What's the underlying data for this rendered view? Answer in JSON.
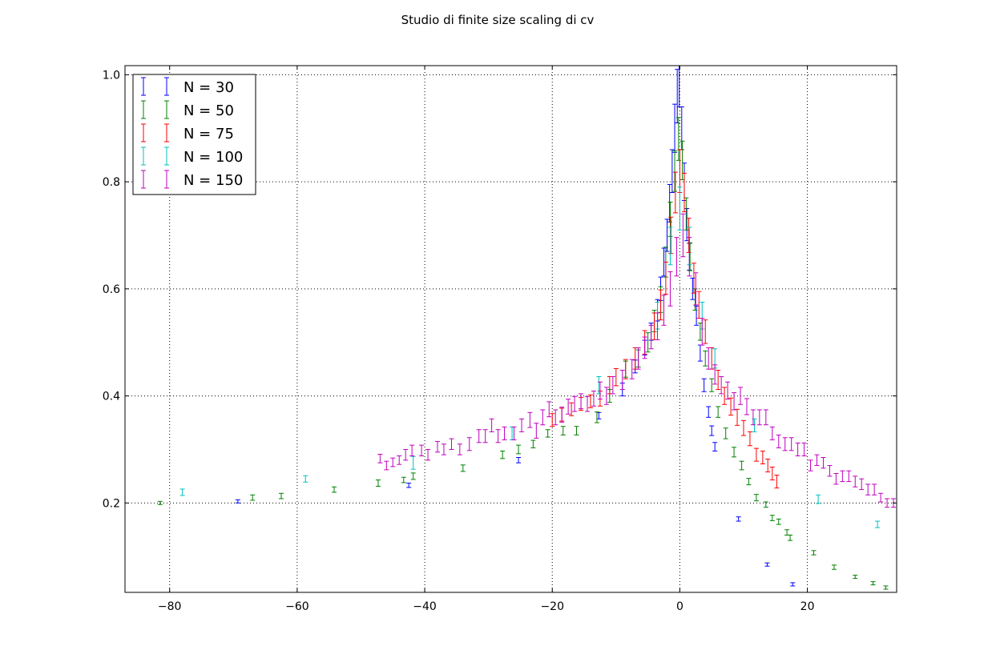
{
  "chart_data": {
    "type": "scatter",
    "title": "Studio di finite size scaling di cv",
    "xlabel": "",
    "ylabel": "",
    "xlim": [
      -87,
      34
    ],
    "ylim": [
      0.033,
      1.017
    ],
    "x_ticks": [
      -80,
      -60,
      -40,
      -20,
      0,
      20
    ],
    "x_tick_labels": [
      "−80",
      "−60",
      "−40",
      "−20",
      "0",
      "20"
    ],
    "y_ticks": [
      0.2,
      0.4,
      0.6,
      0.8,
      1.0
    ],
    "y_tick_labels": [
      "0.2",
      "0.4",
      "0.6",
      "0.8",
      "1.0"
    ],
    "grid": true,
    "legend_position": "top-left",
    "error_bars": true,
    "series": [
      {
        "name": "N = 30",
        "color": "#0000ff",
        "points": [
          [
            -69.3,
            0.203,
            0.003
          ],
          [
            -42.5,
            0.233,
            0.004
          ],
          [
            -25.3,
            0.28,
            0.005
          ],
          [
            -12.7,
            0.363,
            0.006
          ],
          [
            -9.0,
            0.412,
            0.012
          ],
          [
            -7.0,
            0.455,
            0.012
          ],
          [
            -5.5,
            0.49,
            0.014
          ],
          [
            -4.5,
            0.52,
            0.016
          ],
          [
            -3.5,
            0.56,
            0.02
          ],
          [
            -3.0,
            0.6,
            0.022
          ],
          [
            -2.5,
            0.65,
            0.026
          ],
          [
            -2.0,
            0.7,
            0.03
          ],
          [
            -1.6,
            0.76,
            0.035
          ],
          [
            -1.2,
            0.82,
            0.04
          ],
          [
            -0.8,
            0.9,
            0.045
          ],
          [
            -0.4,
            0.96,
            0.05
          ],
          [
            -0.1,
            0.99,
            0.05
          ],
          [
            0.3,
            0.9,
            0.04
          ],
          [
            0.7,
            0.8,
            0.035
          ],
          [
            1.1,
            0.72,
            0.03
          ],
          [
            1.5,
            0.66,
            0.025
          ],
          [
            2.0,
            0.6,
            0.02
          ],
          [
            2.6,
            0.55,
            0.018
          ],
          [
            3.2,
            0.48,
            0.015
          ],
          [
            3.8,
            0.42,
            0.012
          ],
          [
            4.5,
            0.37,
            0.01
          ],
          [
            5.0,
            0.335,
            0.009
          ],
          [
            5.5,
            0.305,
            0.008
          ],
          [
            9.2,
            0.17,
            0.004
          ],
          [
            13.7,
            0.085,
            0.003
          ],
          [
            17.7,
            0.048,
            0.003
          ]
        ]
      },
      {
        "name": "N = 50",
        "color": "#008000",
        "points": [
          [
            -81.5,
            0.2,
            0.003
          ],
          [
            -67.0,
            0.21,
            0.005
          ],
          [
            -62.5,
            0.213,
            0.005
          ],
          [
            -54.2,
            0.225,
            0.005
          ],
          [
            -47.3,
            0.237,
            0.006
          ],
          [
            -43.3,
            0.243,
            0.005
          ],
          [
            -41.8,
            0.25,
            0.006
          ],
          [
            -34.0,
            0.265,
            0.006
          ],
          [
            -27.8,
            0.29,
            0.007
          ],
          [
            -25.3,
            0.3,
            0.008
          ],
          [
            -23.0,
            0.31,
            0.007
          ],
          [
            -20.7,
            0.33,
            0.007
          ],
          [
            -18.3,
            0.335,
            0.008
          ],
          [
            -16.2,
            0.335,
            0.008
          ],
          [
            -13.0,
            0.36,
            0.01
          ],
          [
            -11.0,
            0.4,
            0.012
          ],
          [
            -8.5,
            0.45,
            0.015
          ],
          [
            -6.5,
            0.47,
            0.016
          ],
          [
            -5.0,
            0.5,
            0.018
          ],
          [
            -4.0,
            0.54,
            0.02
          ],
          [
            -3.0,
            0.58,
            0.024
          ],
          [
            -2.2,
            0.65,
            0.028
          ],
          [
            -1.5,
            0.73,
            0.032
          ],
          [
            -0.8,
            0.82,
            0.038
          ],
          [
            -0.2,
            0.88,
            0.04
          ],
          [
            0.4,
            0.84,
            0.036
          ],
          [
            1.0,
            0.74,
            0.03
          ],
          [
            1.6,
            0.66,
            0.026
          ],
          [
            2.4,
            0.58,
            0.02
          ],
          [
            3.2,
            0.52,
            0.016
          ],
          [
            4.0,
            0.47,
            0.014
          ],
          [
            5.0,
            0.42,
            0.012
          ],
          [
            6.0,
            0.37,
            0.01
          ],
          [
            7.2,
            0.33,
            0.01
          ],
          [
            8.5,
            0.295,
            0.009
          ],
          [
            9.7,
            0.27,
            0.008
          ],
          [
            10.8,
            0.24,
            0.006
          ],
          [
            12.0,
            0.21,
            0.006
          ],
          [
            13.5,
            0.197,
            0.005
          ],
          [
            14.5,
            0.172,
            0.005
          ],
          [
            15.5,
            0.165,
            0.005
          ],
          [
            16.8,
            0.145,
            0.005
          ],
          [
            17.3,
            0.135,
            0.005
          ],
          [
            21.0,
            0.107,
            0.004
          ],
          [
            24.2,
            0.08,
            0.004
          ],
          [
            27.5,
            0.062,
            0.003
          ],
          [
            30.3,
            0.05,
            0.003
          ],
          [
            32.3,
            0.042,
            0.003
          ]
        ]
      },
      {
        "name": "N = 75",
        "color": "#ff0000",
        "points": [
          [
            -20.0,
            0.355,
            0.012
          ],
          [
            -18.5,
            0.365,
            0.012
          ],
          [
            -17.0,
            0.375,
            0.012
          ],
          [
            -15.5,
            0.385,
            0.012
          ],
          [
            -14.0,
            0.39,
            0.012
          ],
          [
            -12.5,
            0.395,
            0.014
          ],
          [
            -11.0,
            0.42,
            0.016
          ],
          [
            -10.0,
            0.435,
            0.016
          ],
          [
            -8.5,
            0.45,
            0.018
          ],
          [
            -7.0,
            0.47,
            0.02
          ],
          [
            -5.5,
            0.5,
            0.022
          ],
          [
            -4.0,
            0.53,
            0.025
          ],
          [
            -3.0,
            0.57,
            0.028
          ],
          [
            -2.2,
            0.62,
            0.03
          ],
          [
            -1.4,
            0.7,
            0.034
          ],
          [
            -0.7,
            0.78,
            0.038
          ],
          [
            0.0,
            0.82,
            0.04
          ],
          [
            0.7,
            0.78,
            0.036
          ],
          [
            1.4,
            0.7,
            0.032
          ],
          [
            2.2,
            0.62,
            0.028
          ],
          [
            3.0,
            0.57,
            0.025
          ],
          [
            4.0,
            0.52,
            0.022
          ],
          [
            5.0,
            0.47,
            0.02
          ],
          [
            6.0,
            0.43,
            0.018
          ],
          [
            7.0,
            0.4,
            0.016
          ],
          [
            8.0,
            0.38,
            0.016
          ],
          [
            9.0,
            0.36,
            0.015
          ],
          [
            10.0,
            0.34,
            0.014
          ],
          [
            11.0,
            0.32,
            0.013
          ],
          [
            12.0,
            0.29,
            0.012
          ],
          [
            13.0,
            0.285,
            0.012
          ],
          [
            13.8,
            0.27,
            0.012
          ],
          [
            14.5,
            0.255,
            0.012
          ],
          [
            15.2,
            0.24,
            0.012
          ]
        ]
      },
      {
        "name": "N = 100",
        "color": "#00bfbf",
        "points": [
          [
            -78.0,
            0.22,
            0.006
          ],
          [
            -58.7,
            0.245,
            0.006
          ],
          [
            -41.8,
            0.275,
            0.012
          ],
          [
            -26.3,
            0.33,
            0.012
          ],
          [
            -12.7,
            0.42,
            0.016
          ],
          [
            -3.5,
            0.55,
            0.025
          ],
          [
            -1.5,
            0.68,
            0.035
          ],
          [
            0.0,
            0.75,
            0.04
          ],
          [
            1.5,
            0.68,
            0.035
          ],
          [
            3.5,
            0.55,
            0.025
          ],
          [
            5.5,
            0.47,
            0.018
          ],
          [
            11.7,
            0.345,
            0.012
          ],
          [
            21.7,
            0.207,
            0.008
          ],
          [
            31.0,
            0.16,
            0.006
          ]
        ]
      },
      {
        "name": "N = 150",
        "color": "#bf00bf",
        "points": [
          [
            -47.0,
            0.283,
            0.008
          ],
          [
            -46.0,
            0.27,
            0.008
          ],
          [
            -45.0,
            0.276,
            0.008
          ],
          [
            -44.0,
            0.28,
            0.008
          ],
          [
            -43.0,
            0.29,
            0.01
          ],
          [
            -42.0,
            0.298,
            0.01
          ],
          [
            -40.5,
            0.298,
            0.01
          ],
          [
            -39.5,
            0.29,
            0.01
          ],
          [
            -38.0,
            0.305,
            0.01
          ],
          [
            -37.0,
            0.3,
            0.01
          ],
          [
            -35.8,
            0.31,
            0.01
          ],
          [
            -34.5,
            0.3,
            0.01
          ],
          [
            -33.0,
            0.31,
            0.012
          ],
          [
            -31.5,
            0.325,
            0.012
          ],
          [
            -30.5,
            0.325,
            0.012
          ],
          [
            -29.5,
            0.345,
            0.012
          ],
          [
            -28.5,
            0.325,
            0.012
          ],
          [
            -27.5,
            0.33,
            0.012
          ],
          [
            -26.0,
            0.33,
            0.012
          ],
          [
            -24.8,
            0.345,
            0.012
          ],
          [
            -23.5,
            0.355,
            0.014
          ],
          [
            -22.5,
            0.335,
            0.014
          ],
          [
            -21.5,
            0.36,
            0.014
          ],
          [
            -20.5,
            0.375,
            0.014
          ],
          [
            -19.5,
            0.36,
            0.014
          ],
          [
            -18.5,
            0.365,
            0.014
          ],
          [
            -17.5,
            0.38,
            0.014
          ],
          [
            -16.5,
            0.385,
            0.014
          ],
          [
            -15.5,
            0.39,
            0.014
          ],
          [
            -14.5,
            0.385,
            0.014
          ],
          [
            -13.5,
            0.395,
            0.014
          ],
          [
            -12.5,
            0.41,
            0.016
          ],
          [
            -11.5,
            0.4,
            0.016
          ],
          [
            -10.5,
            0.42,
            0.016
          ],
          [
            -9.0,
            0.43,
            0.018
          ],
          [
            -7.5,
            0.45,
            0.018
          ],
          [
            -6.5,
            0.47,
            0.02
          ],
          [
            -5.5,
            0.49,
            0.02
          ],
          [
            -4.5,
            0.51,
            0.022
          ],
          [
            -3.5,
            0.53,
            0.025
          ],
          [
            -2.5,
            0.56,
            0.028
          ],
          [
            -1.5,
            0.6,
            0.032
          ],
          [
            -0.5,
            0.66,
            0.036
          ],
          [
            0.5,
            0.7,
            0.04
          ],
          [
            1.5,
            0.66,
            0.036
          ],
          [
            2.5,
            0.6,
            0.03
          ],
          [
            3.5,
            0.52,
            0.025
          ],
          [
            4.5,
            0.47,
            0.02
          ],
          [
            5.5,
            0.44,
            0.018
          ],
          [
            6.5,
            0.42,
            0.016
          ],
          [
            7.5,
            0.41,
            0.016
          ],
          [
            8.5,
            0.39,
            0.016
          ],
          [
            9.5,
            0.4,
            0.016
          ],
          [
            10.5,
            0.38,
            0.015
          ],
          [
            11.5,
            0.36,
            0.014
          ],
          [
            12.5,
            0.36,
            0.014
          ],
          [
            13.5,
            0.36,
            0.014
          ],
          [
            14.5,
            0.33,
            0.012
          ],
          [
            15.5,
            0.315,
            0.012
          ],
          [
            16.5,
            0.31,
            0.012
          ],
          [
            17.5,
            0.31,
            0.012
          ],
          [
            18.5,
            0.3,
            0.012
          ],
          [
            19.5,
            0.3,
            0.012
          ],
          [
            20.5,
            0.27,
            0.01
          ],
          [
            21.5,
            0.28,
            0.01
          ],
          [
            22.5,
            0.275,
            0.01
          ],
          [
            23.5,
            0.26,
            0.01
          ],
          [
            24.5,
            0.245,
            0.01
          ],
          [
            25.5,
            0.25,
            0.01
          ],
          [
            26.5,
            0.25,
            0.01
          ],
          [
            27.5,
            0.24,
            0.01
          ],
          [
            28.5,
            0.235,
            0.01
          ],
          [
            29.5,
            0.225,
            0.01
          ],
          [
            30.5,
            0.225,
            0.01
          ],
          [
            31.5,
            0.21,
            0.008
          ],
          [
            32.5,
            0.2,
            0.008
          ],
          [
            33.5,
            0.2,
            0.008
          ]
        ]
      }
    ]
  }
}
